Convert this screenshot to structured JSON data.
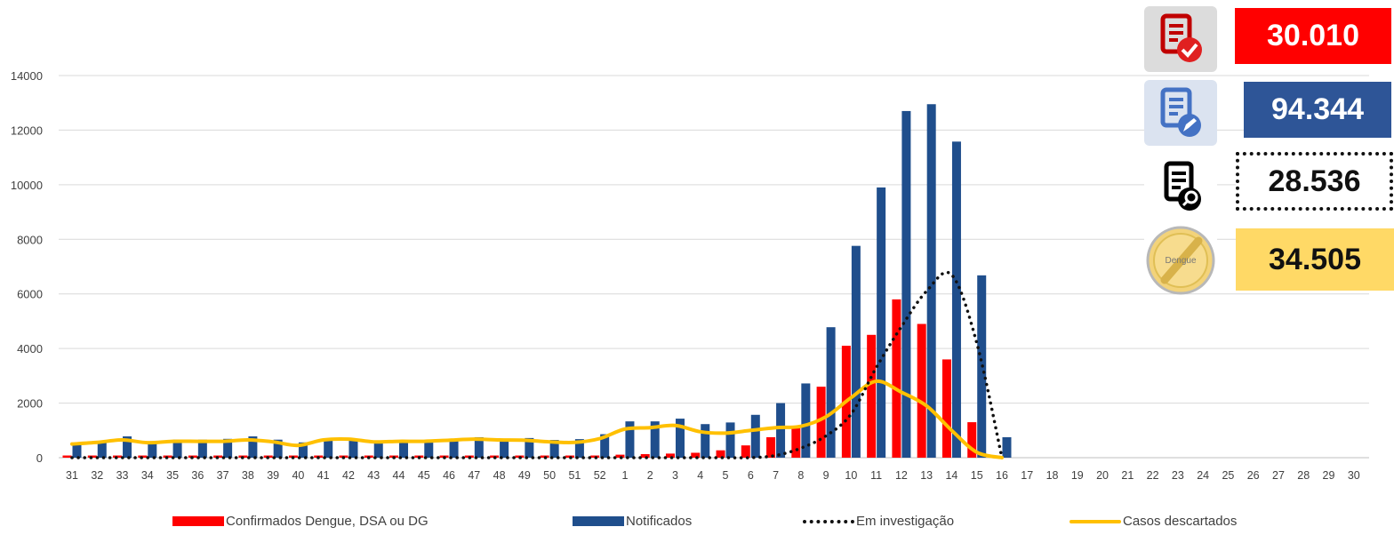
{
  "chart_data": {
    "type": "bar",
    "categories": [
      "31",
      "32",
      "33",
      "34",
      "35",
      "36",
      "37",
      "38",
      "39",
      "40",
      "41",
      "42",
      "43",
      "44",
      "45",
      "46",
      "47",
      "48",
      "49",
      "50",
      "51",
      "52",
      "1",
      "2",
      "3",
      "4",
      "5",
      "6",
      "7",
      "8",
      "9",
      "10",
      "11",
      "12",
      "13",
      "14",
      "15",
      "16",
      "17",
      "18",
      "19",
      "20",
      "21",
      "22",
      "23",
      "24",
      "25",
      "26",
      "27",
      "28",
      "29",
      "30"
    ],
    "ylim": [
      0,
      14000
    ],
    "yticks": [
      0,
      2000,
      4000,
      6000,
      8000,
      10000,
      12000,
      14000
    ],
    "grid": true,
    "legend_position": "bottom",
    "series": [
      {
        "name": "Confirmados Dengue, DSA ou DG",
        "kind": "bar",
        "color": "#ff0000",
        "values": [
          80,
          80,
          80,
          80,
          80,
          80,
          80,
          80,
          80,
          80,
          80,
          80,
          80,
          80,
          80,
          80,
          80,
          80,
          80,
          80,
          80,
          80,
          110,
          130,
          150,
          180,
          270,
          450,
          750,
          1150,
          2600,
          4100,
          4500,
          5800,
          4900,
          3600,
          1300,
          0,
          null,
          null,
          null,
          null,
          null,
          null,
          null,
          null,
          null,
          null,
          null,
          null,
          null,
          null
        ]
      },
      {
        "name": "Notificados",
        "kind": "bar",
        "color": "#1f4e8c",
        "values": [
          480,
          570,
          780,
          580,
          660,
          660,
          690,
          780,
          660,
          560,
          700,
          700,
          630,
          640,
          630,
          650,
          750,
          700,
          720,
          650,
          680,
          860,
          1330,
          1330,
          1430,
          1230,
          1290,
          1570,
          2000,
          2720,
          4780,
          7760,
          9900,
          12700,
          12950,
          11580,
          6680,
          750,
          null,
          null,
          null,
          null,
          null,
          null,
          null,
          null,
          null,
          null,
          null,
          null,
          null,
          null
        ]
      },
      {
        "name": "Em investigação",
        "kind": "line-dotted",
        "color": "#111111",
        "values": [
          0,
          0,
          0,
          0,
          0,
          0,
          0,
          0,
          0,
          0,
          0,
          0,
          0,
          0,
          0,
          0,
          0,
          0,
          0,
          0,
          0,
          0,
          0,
          0,
          0,
          0,
          0,
          0,
          80,
          350,
          800,
          1600,
          3300,
          4800,
          6100,
          6700,
          4200,
          0,
          null,
          null,
          null,
          null,
          null,
          null,
          null,
          null,
          null,
          null,
          null,
          null,
          null,
          null
        ]
      },
      {
        "name": "Casos descartados",
        "kind": "line",
        "color": "#ffc000",
        "values": [
          500,
          560,
          650,
          550,
          600,
          600,
          600,
          650,
          580,
          450,
          650,
          680,
          580,
          600,
          600,
          640,
          680,
          650,
          640,
          580,
          560,
          700,
          1050,
          1100,
          1180,
          950,
          900,
          1000,
          1100,
          1150,
          1500,
          2200,
          2800,
          2400,
          1900,
          1000,
          200,
          0,
          null,
          null,
          null,
          null,
          null,
          null,
          null,
          null,
          null,
          null,
          null,
          null,
          null,
          null
        ]
      }
    ]
  },
  "kpis": [
    {
      "value": "30.010",
      "icon": "document-check-icon",
      "box_color": "#ff0000",
      "text_color": "#ffffff",
      "icon_bg": "#dcdcdc"
    },
    {
      "value": "94.344",
      "icon": "document-edit-icon",
      "box_color": "#2e5597",
      "text_color": "#ffffff",
      "icon_bg": "#dbe3f0"
    },
    {
      "value": "28.536",
      "icon": "document-search-icon",
      "box_color": "#ffffff",
      "text_color": "#111111",
      "icon_bg": "#ffffff",
      "dashed": true
    },
    {
      "value": "34.505",
      "icon": "dengue-discarded-icon",
      "icon_text": "Dengue",
      "box_color": "#ffd966",
      "text_color": "#111111",
      "icon_bg": "#ffffff"
    }
  ]
}
